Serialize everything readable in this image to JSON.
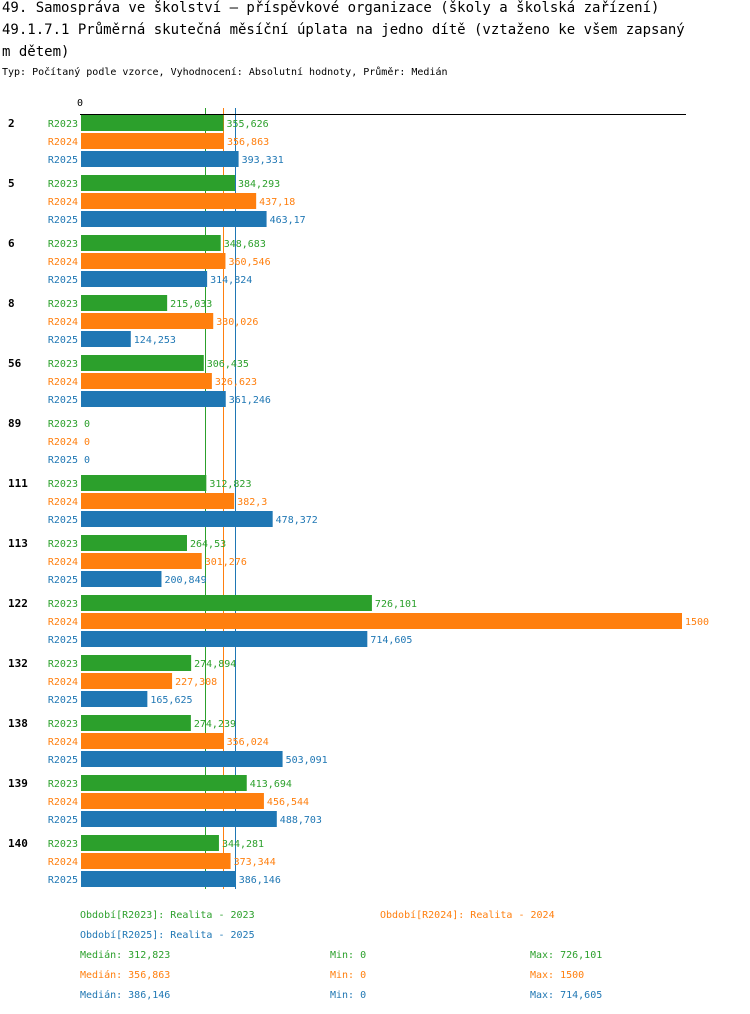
{
  "header": {
    "title_line1": "49. Samospráva ve školství – příspěvkové organizace (školy a školská zařízení)",
    "title_line2": "49.1.7.1 Průměrná skutečná měsíční úplata na jedno dítě (vztaženo ke všem zapsaný",
    "title_line3": "m dětem)",
    "subtitle": "Typ: Počítaný podle vzorce, Vyhodnocení: Absolutní hodnoty, Průměr: Medián"
  },
  "chart_data": {
    "type": "bar",
    "orientation": "horizontal",
    "axis_zero_label": "0",
    "xlim": [
      0,
      1500
    ],
    "categories": [
      "2",
      "5",
      "6",
      "8",
      "56",
      "89",
      "111",
      "113",
      "122",
      "132",
      "138",
      "139",
      "140"
    ],
    "series": [
      {
        "name": "R2023",
        "color": "#2ca02c",
        "values": [
          355.626,
          384.293,
          348.683,
          215.033,
          306.435,
          0,
          312.823,
          264.53,
          726.101,
          274.894,
          274.239,
          413.694,
          344.281
        ],
        "labels": [
          "355,626",
          "384,293",
          "348,683",
          "215,033",
          "306,435",
          "0",
          "312,823",
          "264,53",
          "726,101",
          "274,894",
          "274,239",
          "413,694",
          "344,281"
        ]
      },
      {
        "name": "R2024",
        "color": "#ff7f0e",
        "values": [
          356.863,
          437.18,
          360.546,
          330.026,
          326.623,
          0,
          382.3,
          301.276,
          1500,
          227.308,
          356.024,
          456.544,
          373.344
        ],
        "labels": [
          "356,863",
          "437,18",
          "360,546",
          "330,026",
          "326,623",
          "0",
          "382,3",
          "301,276",
          "1500",
          "227,308",
          "356,024",
          "456,544",
          "373,344"
        ]
      },
      {
        "name": "R2025",
        "color": "#1f77b4",
        "values": [
          393.331,
          463.17,
          314.824,
          124.253,
          361.246,
          0,
          478.372,
          200.849,
          714.605,
          165.625,
          503.091,
          488.703,
          386.146
        ],
        "labels": [
          "393,331",
          "463,17",
          "314,824",
          "124,253",
          "361,246",
          "0",
          "478,372",
          "200,849",
          "714,605",
          "165,625",
          "503,091",
          "488,703",
          "386,146"
        ]
      }
    ],
    "medians": [
      312.823,
      356.863,
      386.146
    ]
  },
  "legend": {
    "period_2023": "Období[R2023]: Realita - 2023",
    "period_2024": "Období[R2024]: Realita - 2024",
    "period_2025": "Období[R2025]: Realita - 2025",
    "stats": [
      {
        "median": "Medián: 312,823",
        "min": "Min: 0",
        "max": "Max: 726,101",
        "color": "#2ca02c"
      },
      {
        "median": "Medián: 356,863",
        "min": "Min: 0",
        "max": "Max: 1500",
        "color": "#ff7f0e"
      },
      {
        "median": "Medián: 386,146",
        "min": "Min: 0",
        "max": "Max: 714,605",
        "color": "#1f77b4"
      }
    ]
  }
}
